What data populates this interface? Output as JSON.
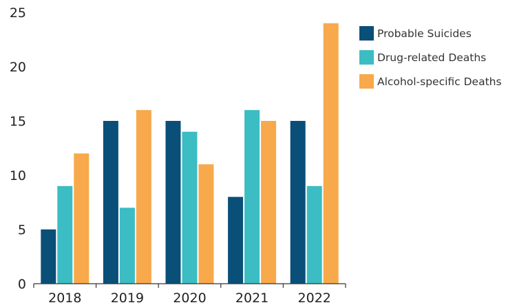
{
  "chart_data": {
    "type": "bar",
    "title": "",
    "xlabel": "",
    "ylabel": "",
    "categories": [
      "2018",
      "2019",
      "2020",
      "2021",
      "2022"
    ],
    "series": [
      {
        "name": "Probable Suicides",
        "color": "#0a4f78",
        "values": [
          5,
          15,
          15,
          8,
          15
        ]
      },
      {
        "name": "Drug-related Deaths",
        "color": "#3cbcc3",
        "values": [
          9,
          7,
          14,
          16,
          9
        ]
      },
      {
        "name": "Alcohol-specific Deaths",
        "color": "#f7a94b",
        "values": [
          12,
          16,
          11,
          15,
          24
        ]
      }
    ],
    "ylim": [
      0,
      25
    ],
    "yticks": [
      0,
      5,
      10,
      15,
      20,
      25
    ],
    "grid": false,
    "legend_position": "top-right"
  }
}
